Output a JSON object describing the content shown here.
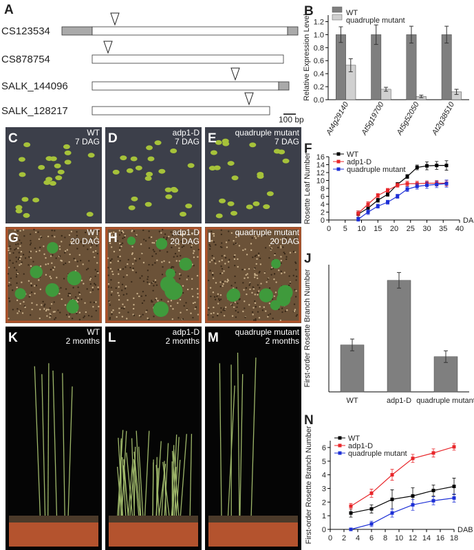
{
  "gene_diagram": {
    "letter": "A",
    "constructs": [
      "CS123534",
      "CS878754",
      "SALK_144096",
      "SALK_128217"
    ],
    "scale_bar": "100 bp"
  },
  "photos": [
    {
      "letter": "C",
      "genotype": "WT",
      "stage": "7 DAG"
    },
    {
      "letter": "D",
      "genotype": "adp1-D",
      "stage": "7 DAG"
    },
    {
      "letter": "E",
      "genotype": "quadruple mutant",
      "stage": "7 DAG"
    },
    {
      "letter": "G",
      "genotype": "WT",
      "stage": "20 DAG"
    },
    {
      "letter": "H",
      "genotype": "adp1-D",
      "stage": "20 DAG"
    },
    {
      "letter": "I",
      "genotype": "quadruple mutant",
      "stage": "20 DAG"
    },
    {
      "letter": "K",
      "genotype": "WT",
      "stage": "2 months"
    },
    {
      "letter": "L",
      "genotype": "adp1-D",
      "stage": "2 months"
    },
    {
      "letter": "M",
      "genotype": "quadruple mutant",
      "stage": "2 months"
    }
  ],
  "chart_data": [
    {
      "type": "bar",
      "letter": "B",
      "ylabel": "Relative Expression Level",
      "categories": [
        "At4g29140",
        "At5g19700",
        "At5g52050",
        "At2g38510"
      ],
      "series": [
        {
          "name": "WT",
          "color": "#7f7f7f",
          "values": [
            1.0,
            1.0,
            1.0,
            1.0
          ],
          "errors": [
            0.12,
            0.15,
            0.13,
            0.13
          ]
        },
        {
          "name": "quadruple mutant",
          "color": "#d0d0d0",
          "values": [
            0.53,
            0.16,
            0.05,
            0.12
          ],
          "errors": [
            0.1,
            0.03,
            0.02,
            0.04
          ]
        }
      ],
      "ylim": [
        0,
        1.3
      ],
      "yticks": [
        {
          "value": 0,
          "label": "0.0"
        },
        0.2,
        0.4,
        0.6,
        0.8,
        {
          "value": 1,
          "label": "1.0"
        },
        1.2
      ],
      "legend": "top-left"
    },
    {
      "type": "line",
      "letter": "F",
      "ylabel": "Rosette Leaf Number",
      "xlabel": "DAG",
      "x": [
        9,
        12,
        15,
        18,
        21,
        24,
        27,
        30,
        33,
        36
      ],
      "series": [
        {
          "name": "WT",
          "color": "#000000",
          "values": [
            1.5,
            3,
            5,
            6.5,
            9,
            11,
            13.3,
            13.7,
            13.8,
            13.8
          ],
          "errors": [
            0.8,
            0.6,
            0.5,
            0.5,
            0.5,
            0.5,
            0.6,
            1,
            1,
            1.2
          ]
        },
        {
          "name": "adp1-D",
          "color": "#e8262a",
          "values": [
            1.7,
            4,
            6.2,
            7.5,
            8.8,
            9.2,
            9.2,
            9.3,
            9.3,
            9.3
          ],
          "errors": [
            0.6,
            0.6,
            0.5,
            0.5,
            0.5,
            0.6,
            0.6,
            0.6,
            0.7,
            0.7
          ]
        },
        {
          "name": "quadruple mutant",
          "color": "#1c2fd6",
          "values": [
            0.2,
            2,
            3.5,
            4.5,
            6,
            7.8,
            8.5,
            8.8,
            9,
            9.2
          ],
          "errors": [
            0.5,
            0.6,
            0.5,
            0.5,
            0.5,
            0.6,
            0.7,
            0.8,
            0.8,
            0.9
          ]
        }
      ],
      "xlim": [
        0,
        40
      ],
      "xticks": [
        0,
        5,
        10,
        15,
        20,
        25,
        30,
        35,
        40
      ],
      "ylim": [
        0,
        16
      ],
      "yticks": [
        0,
        2,
        4,
        6,
        8,
        10,
        12,
        14,
        16
      ],
      "legend": "top-left"
    },
    {
      "type": "bar",
      "letter": "J",
      "ylabel": "First-order Rosette Branch Number",
      "categories": [
        "WT",
        "adp1-D",
        "quadruple mutant"
      ],
      "series": [
        {
          "color": "#7f7f7f",
          "values": [
            2.4,
            5.7,
            1.8
          ],
          "errors": [
            0.3,
            0.4,
            0.3
          ]
        }
      ],
      "ylim": [
        0,
        6.5
      ]
    },
    {
      "type": "line",
      "letter": "N",
      "ylabel": "First-order Rosette Branch Number",
      "xlabel": "DAB",
      "x": [
        3,
        6,
        9,
        12,
        15,
        18
      ],
      "series": [
        {
          "name": "WT",
          "color": "#000000",
          "values": [
            1.2,
            1.5,
            2.2,
            2.45,
            2.85,
            3.15
          ],
          "errors": [
            0.3,
            0.3,
            0.7,
            0.6,
            0.4,
            0.6
          ]
        },
        {
          "name": "adp1-D",
          "color": "#e8262a",
          "values": [
            1.7,
            2.65,
            4.0,
            5.2,
            5.6,
            6.05
          ],
          "errors": [
            0.2,
            0.3,
            0.4,
            0.3,
            0.3,
            0.25
          ]
        },
        {
          "name": "quadruple mutant",
          "color": "#1c2fd6",
          "values": [
            0,
            0.4,
            1.2,
            1.8,
            2.1,
            2.3
          ],
          "errors": [
            0.1,
            0.2,
            0.3,
            0.4,
            0.3,
            0.3
          ]
        }
      ],
      "xlim": [
        0,
        18
      ],
      "xticks": [
        0,
        2,
        4,
        6,
        8,
        10,
        12,
        14,
        16,
        18
      ],
      "ylim": [
        0,
        6.5
      ],
      "yticks": [
        0,
        1,
        2,
        3,
        4,
        5,
        6
      ],
      "legend": "top-left"
    }
  ]
}
